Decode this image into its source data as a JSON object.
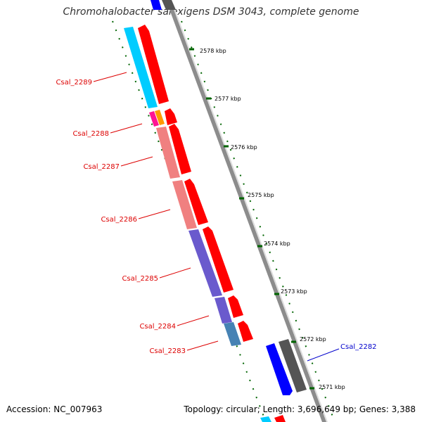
{
  "title": "Chromohalobacter salexigens DSM 3043, complete genome",
  "footer": {
    "accession": "Accession: NC_007963",
    "topology": "Topology: circular; Length: 3,696,649 bp; Genes: 3,388"
  },
  "ticks": [
    {
      "label": "2578 kbp"
    },
    {
      "label": "2577 kbp"
    },
    {
      "label": "2576 kbp"
    },
    {
      "label": "2575 kbp"
    },
    {
      "label": "2574 kbp"
    },
    {
      "label": "2573 kbp"
    },
    {
      "label": "2572 kbp"
    },
    {
      "label": "2571 kbp"
    }
  ],
  "genes": [
    {
      "label": "Csal_2289",
      "color": "#dd0000"
    },
    {
      "label": "Csal_2288",
      "color": "#dd0000"
    },
    {
      "label": "Csal_2287",
      "color": "#dd0000"
    },
    {
      "label": "Csal_2286",
      "color": "#dd0000"
    },
    {
      "label": "Csal_2285",
      "color": "#dd0000"
    },
    {
      "label": "Csal_2284",
      "color": "#dd0000"
    },
    {
      "label": "Csal_2283",
      "color": "#dd0000"
    },
    {
      "label": "Csal_2282",
      "color": "#0000cc"
    }
  ],
  "colors": {
    "backbone": "#8c8c8c",
    "cds": "#ff0000",
    "cyan_feature": "#00ccff",
    "pink_feature": "#f08080",
    "purple_feature": "#6a5acd",
    "steel_feature": "#4682b4",
    "blue_feature": "#0000ff",
    "gray_feature": "#555555",
    "magenta_feature": "#ff1493",
    "orange_feature": "#ff9900",
    "tick_green": "#006400"
  }
}
